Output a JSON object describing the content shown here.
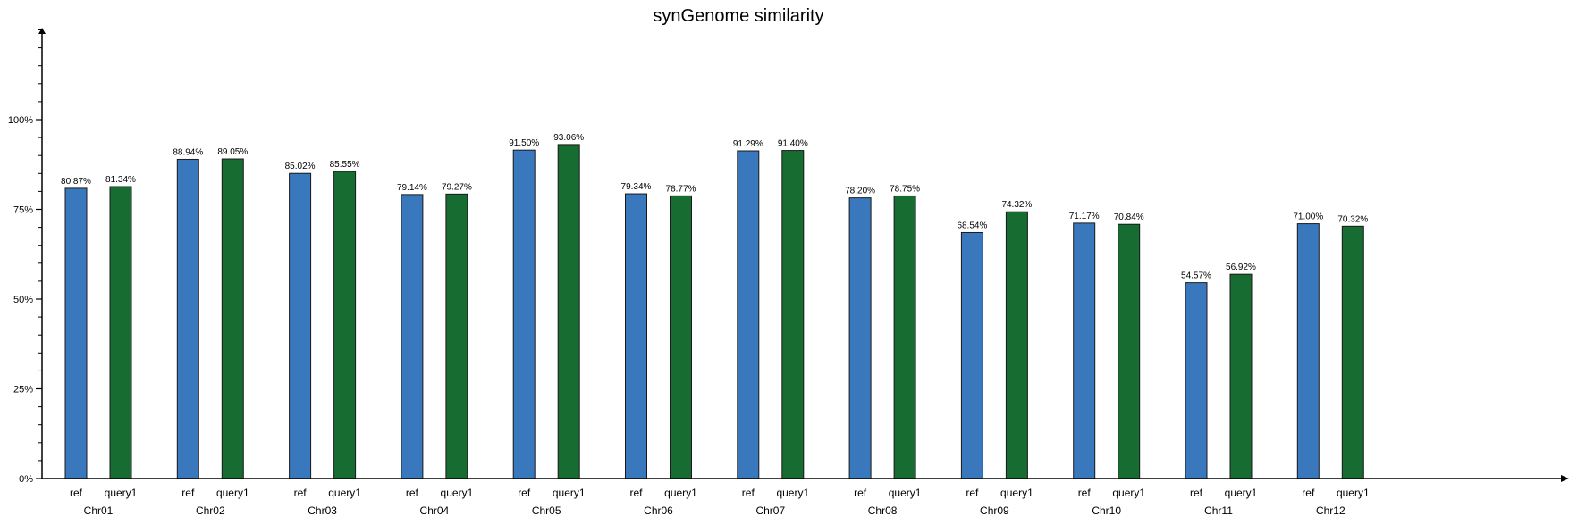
{
  "chart_data": {
    "type": "bar",
    "title": "synGenome similarity",
    "xlabel": "",
    "ylabel": "",
    "ylim": [
      0,
      125
    ],
    "yticks": [
      0,
      25,
      50,
      75,
      100
    ],
    "yticklabels": [
      "0%",
      "25%",
      "50%",
      "75%",
      "100%"
    ],
    "categories": [
      "Chr01",
      "Chr02",
      "Chr03",
      "Chr04",
      "Chr05",
      "Chr06",
      "Chr07",
      "Chr08",
      "Chr09",
      "Chr10",
      "Chr11",
      "Chr12"
    ],
    "series": [
      {
        "name": "ref",
        "color": "#3a78bd",
        "values": [
          80.87,
          88.94,
          85.02,
          79.14,
          91.5,
          79.34,
          91.29,
          78.2,
          68.54,
          71.17,
          54.57,
          71.0
        ],
        "labels": [
          "80.87%",
          "88.94%",
          "85.02%",
          "79.14%",
          "91.50%",
          "79.34%",
          "91.29%",
          "78.20%",
          "68.54%",
          "71.17%",
          "54.57%",
          "71.00%"
        ]
      },
      {
        "name": "query1",
        "color": "#176c31",
        "values": [
          81.34,
          89.05,
          85.55,
          79.27,
          93.06,
          78.77,
          91.4,
          78.75,
          74.32,
          70.84,
          56.92,
          70.32
        ],
        "labels": [
          "81.34%",
          "89.05%",
          "85.55%",
          "79.27%",
          "93.06%",
          "78.77%",
          "91.40%",
          "78.75%",
          "74.32%",
          "70.84%",
          "56.92%",
          "70.32%"
        ]
      }
    ],
    "grid": false,
    "legend": "none"
  }
}
